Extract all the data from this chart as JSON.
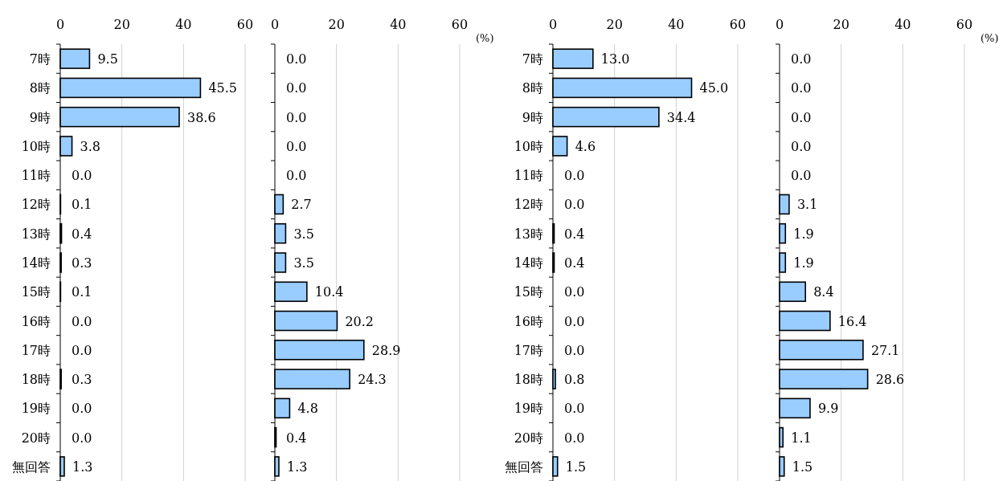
{
  "chart_data": [
    {
      "type": "bar",
      "orientation": "horizontal",
      "categories": [
        "7時",
        "8時",
        "9時",
        "10時",
        "11時",
        "12時",
        "13時",
        "14時",
        "15時",
        "16時",
        "17時",
        "18時",
        "19時",
        "20時",
        "無回答"
      ],
      "values": [
        9.5,
        45.5,
        38.6,
        3.8,
        0.0,
        0.1,
        0.4,
        0.3,
        0.1,
        0.0,
        0.0,
        0.3,
        0.0,
        0.0,
        1.3
      ],
      "value_labels": [
        "9.5",
        "45.5",
        "38.6",
        "3.8",
        "0.0",
        "0.1",
        "0.4",
        "0.3",
        "0.1",
        "0.0",
        "0.0",
        "0.3",
        "0.0",
        "0.0",
        "1.3"
      ],
      "color": "#99ccff",
      "xlim": [
        0,
        60
      ],
      "xticks": [
        0,
        20,
        40,
        60
      ],
      "grid": "x"
    },
    {
      "type": "bar",
      "orientation": "horizontal",
      "categories": [
        null,
        null,
        null,
        null,
        null,
        null,
        null,
        null,
        null,
        null,
        null,
        null,
        null,
        null,
        null
      ],
      "values": [
        0.0,
        0.0,
        0.0,
        0.0,
        0.0,
        2.7,
        3.5,
        3.5,
        10.4,
        20.2,
        28.9,
        24.3,
        4.8,
        0.4,
        1.3
      ],
      "value_labels": [
        "0.0",
        "0.0",
        "0.0",
        "0.0",
        "0.0",
        "2.7",
        "3.5",
        "3.5",
        "10.4",
        "20.2",
        "28.9",
        "24.3",
        "4.8",
        "0.4",
        "1.3"
      ],
      "color": "#99ccff",
      "xlim": [
        0,
        60
      ],
      "xticks": [
        0,
        20,
        40,
        60
      ],
      "grid": "x",
      "xlabel": "(%)"
    },
    {
      "type": "bar",
      "orientation": "horizontal",
      "categories": [
        "7時",
        "8時",
        "9時",
        "10時",
        "11時",
        "12時",
        "13時",
        "14時",
        "15時",
        "16時",
        "17時",
        "18時",
        "19時",
        "20時",
        "無回答"
      ],
      "values": [
        13.0,
        45.0,
        34.4,
        4.6,
        0.0,
        0.0,
        0.4,
        0.4,
        0.0,
        0.0,
        0.0,
        0.8,
        0.0,
        0.0,
        1.5
      ],
      "value_labels": [
        "13.0",
        "45.0",
        "34.4",
        "4.6",
        "0.0",
        "0.0",
        "0.4",
        "0.4",
        "0.0",
        "0.0",
        "0.0",
        "0.8",
        "0.0",
        "0.0",
        "1.5"
      ],
      "color": "#99ccff",
      "xlim": [
        0,
        60
      ],
      "xticks": [
        0,
        20,
        40,
        60
      ],
      "grid": "x"
    },
    {
      "type": "bar",
      "orientation": "horizontal",
      "categories": [
        null,
        null,
        null,
        null,
        null,
        null,
        null,
        null,
        null,
        null,
        null,
        null,
        null,
        null,
        null
      ],
      "values": [
        0.0,
        0.0,
        0.0,
        0.0,
        0.0,
        3.1,
        1.9,
        1.9,
        8.4,
        16.4,
        27.1,
        28.6,
        9.9,
        1.1,
        1.5
      ],
      "value_labels": [
        "0.0",
        "0.0",
        "0.0",
        "0.0",
        "0.0",
        "3.1",
        "1.9",
        "1.9",
        "8.4",
        "16.4",
        "27.1",
        "28.6",
        "9.9",
        "1.1",
        "1.5"
      ],
      "color": "#99ccff",
      "xlim": [
        0,
        60
      ],
      "xticks": [
        0,
        20,
        40,
        60
      ],
      "grid": "x",
      "xlabel": "(%)"
    }
  ]
}
